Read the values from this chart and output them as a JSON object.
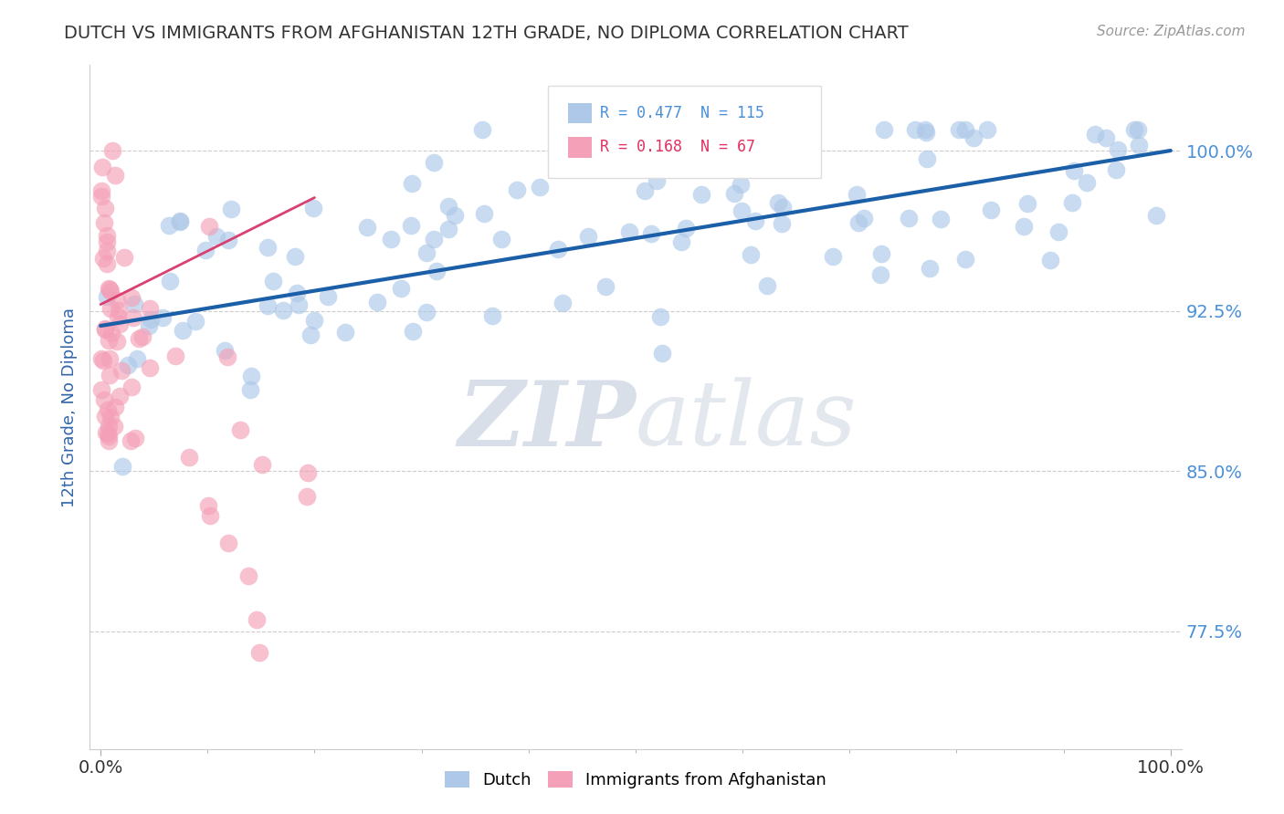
{
  "title": "DUTCH VS IMMIGRANTS FROM AFGHANISTAN 12TH GRADE, NO DIPLOMA CORRELATION CHART",
  "source": "Source: ZipAtlas.com",
  "ylabel": "12th Grade, No Diploma",
  "ytick_labels_right": [
    "100.0%",
    "92.5%",
    "85.0%",
    "77.5%"
  ],
  "yticks": [
    1.0,
    0.925,
    0.85,
    0.775
  ],
  "xtick_labels": [
    "0.0%",
    "100.0%"
  ],
  "legend_labels": [
    "Dutch",
    "Immigrants from Afghanistan"
  ],
  "dutch_R": 0.477,
  "dutch_N": 115,
  "afghan_R": 0.168,
  "afghan_N": 67,
  "dutch_color": "#adc8e8",
  "afghan_color": "#f4a0b8",
  "dutch_line_color": "#1a5fa8",
  "afghan_line_color": "#d94070",
  "watermark_color": "#d8dde8",
  "background_color": "#ffffff",
  "xlim": [
    -0.01,
    1.01
  ],
  "ylim": [
    0.72,
    1.04
  ]
}
